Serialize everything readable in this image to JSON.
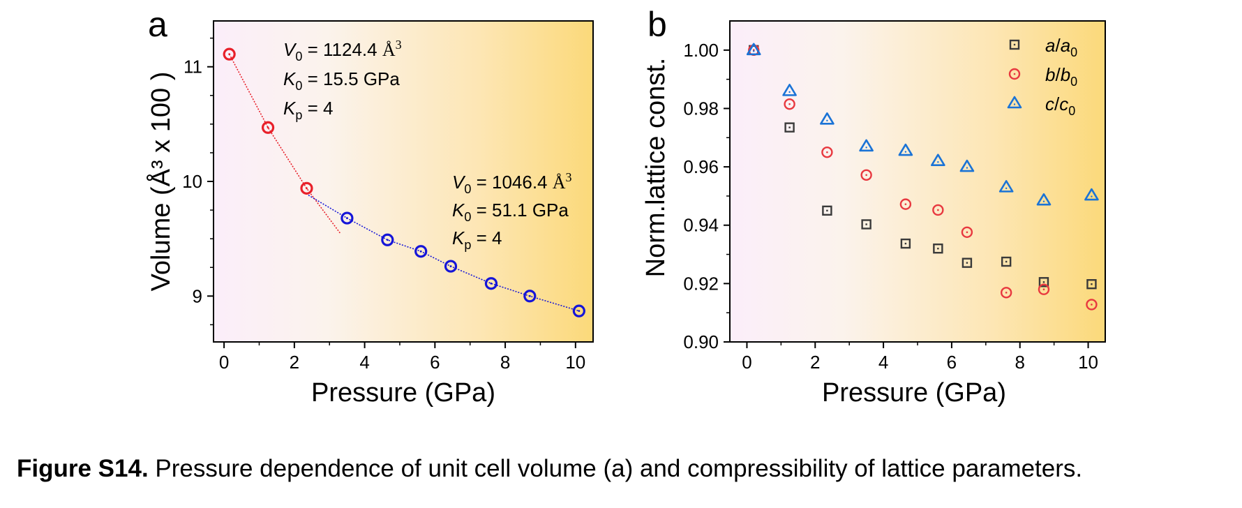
{
  "chart_data": [
    {
      "panel": "a",
      "type": "scatter",
      "xlabel": "Pressure (GPa)",
      "ylabel": "Volume (Å³ x 100 )",
      "xlim": [
        -0.3,
        10.5
      ],
      "ylim": [
        8.6,
        11.4
      ],
      "x_ticks": [
        0,
        2,
        4,
        6,
        8,
        10
      ],
      "y_ticks": [
        9,
        10,
        11
      ],
      "series": [
        {
          "color": "#e8202a",
          "x": [
            0.15,
            1.25,
            2.35
          ],
          "y": [
            11.11,
            10.47,
            9.94
          ]
        },
        {
          "color": "#1515d8",
          "x": [
            3.5,
            4.65,
            5.6,
            6.45,
            7.6,
            8.7,
            10.1
          ],
          "y": [
            9.68,
            9.49,
            9.39,
            9.26,
            9.11,
            9.0,
            8.87
          ]
        }
      ],
      "fits": [
        {
          "color": "#e8202a",
          "x": [
            0.15,
            1.25,
            2.35,
            3.3
          ],
          "y": [
            11.11,
            10.47,
            9.94,
            9.55
          ]
        },
        {
          "color": "#1515d8",
          "x": [
            2.4,
            3.5,
            4.65,
            5.6,
            6.45,
            7.6,
            8.7,
            10.1
          ],
          "y": [
            9.88,
            9.68,
            9.49,
            9.39,
            9.26,
            9.11,
            9.0,
            8.87
          ]
        }
      ],
      "annotations": {
        "fit1": {
          "v0_label": "V",
          "v0_sub": "0",
          "v0_value": " = 1124.4 ",
          "v0_unit": "Å",
          "v0_sup": "3",
          "k0_label": "K",
          "k0_sub": "0",
          "k0_value": " = 15.5 GPa",
          "kp_label": "K",
          "kp_sub": "p",
          "kp_value": " =  4"
        },
        "fit2": {
          "v0_label": "V",
          "v0_sub": "0",
          "v0_value": " = 1046.4 ",
          "v0_unit": "Å",
          "v0_sup": "3",
          "k0_label": "K",
          "k0_sub": "0",
          "k0_value": " = 51.1 GPa",
          "kp_label": "K",
          "kp_sub": "p",
          "kp_value": " = 4"
        }
      },
      "background_gradient": [
        "#fbeefa",
        "#fbf3ec",
        "#fde6b4",
        "#fbd97a"
      ]
    },
    {
      "panel": "b",
      "type": "scatter",
      "xlabel": "Pressure (GPa)",
      "ylabel": "Norm.lattice const.",
      "xlim": [
        -0.5,
        10.5
      ],
      "ylim": [
        0.9,
        1.01
      ],
      "x_ticks": [
        0,
        2,
        4,
        6,
        8,
        10
      ],
      "y_ticks": [
        0.9,
        0.92,
        0.94,
        0.96,
        0.98,
        1.0
      ],
      "x": [
        0.2,
        1.25,
        2.35,
        3.5,
        4.65,
        5.6,
        6.45,
        7.6,
        8.7,
        10.1
      ],
      "series": [
        {
          "name": "a/a0",
          "name_parts": [
            "a",
            "/",
            "a",
            "0"
          ],
          "marker": "square",
          "color": "#3a3a3a",
          "values": [
            1.0,
            0.9735,
            0.945,
            0.9403,
            0.9337,
            0.932,
            0.9271,
            0.9275,
            0.9205,
            0.9198
          ]
        },
        {
          "name": "b/b0",
          "name_parts": [
            "b",
            "/",
            "b",
            "0"
          ],
          "marker": "circle",
          "color": "#e8383f",
          "values": [
            1.0,
            0.9815,
            0.965,
            0.9572,
            0.9472,
            0.9452,
            0.9376,
            0.9169,
            0.918,
            0.9128
          ]
        },
        {
          "name": "c/c0",
          "name_parts": [
            "c",
            "/",
            "c",
            "0"
          ],
          "marker": "triangle",
          "color": "#1a73d6",
          "values": [
            1.0,
            0.986,
            0.9762,
            0.967,
            0.9655,
            0.962,
            0.96,
            0.953,
            0.9485,
            0.9502
          ]
        }
      ],
      "legend": "top-right",
      "background_gradient": [
        "#fbeefa",
        "#fbf3ec",
        "#fde6b4",
        "#fbd97a"
      ]
    }
  ],
  "panel_labels": {
    "a": "a",
    "b": "b"
  },
  "caption": {
    "bold": "Figure S14.",
    "text": " Pressure dependence of unit cell volume (a) and compressibility of lattice parameters."
  }
}
